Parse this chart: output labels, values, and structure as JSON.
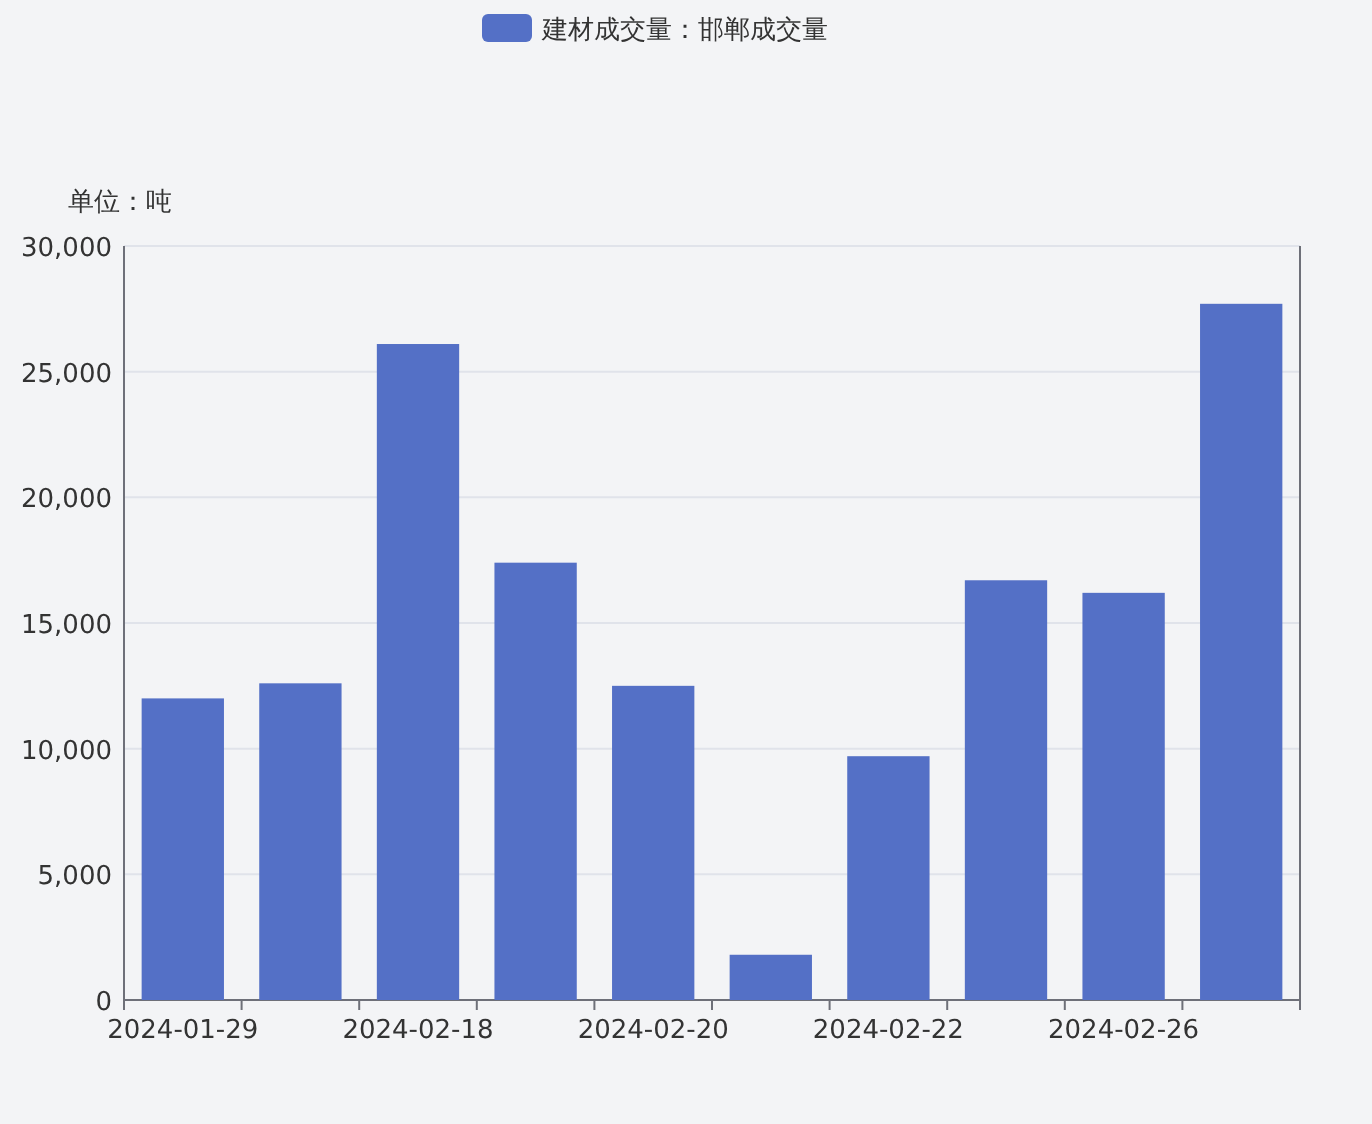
{
  "chart_data": {
    "type": "bar",
    "ylabel": "单位：吨",
    "categories": [
      "2024-01-29",
      null,
      "2024-02-18",
      null,
      "2024-02-20",
      null,
      "2024-02-22",
      null,
      "2024-02-26",
      null
    ],
    "series": [
      {
        "name": "建材成交量：邯郸成交量",
        "color": "#5470c6",
        "values": [
          12000,
          12600,
          26100,
          17400,
          12500,
          1800,
          9700,
          16700,
          16200,
          27700
        ]
      }
    ],
    "ylim": [
      0,
      30000
    ],
    "yticks": [
      {
        "value": 0,
        "label": "0"
      },
      {
        "value": 5000,
        "label": "5,000"
      },
      {
        "value": 10000,
        "label": "10,000"
      },
      {
        "value": 15000,
        "label": "15,000"
      },
      {
        "value": 20000,
        "label": "20,000"
      },
      {
        "value": 25000,
        "label": "25,000"
      },
      {
        "value": 30000,
        "label": "30,000"
      }
    ],
    "grid": "y",
    "legend": "top"
  }
}
